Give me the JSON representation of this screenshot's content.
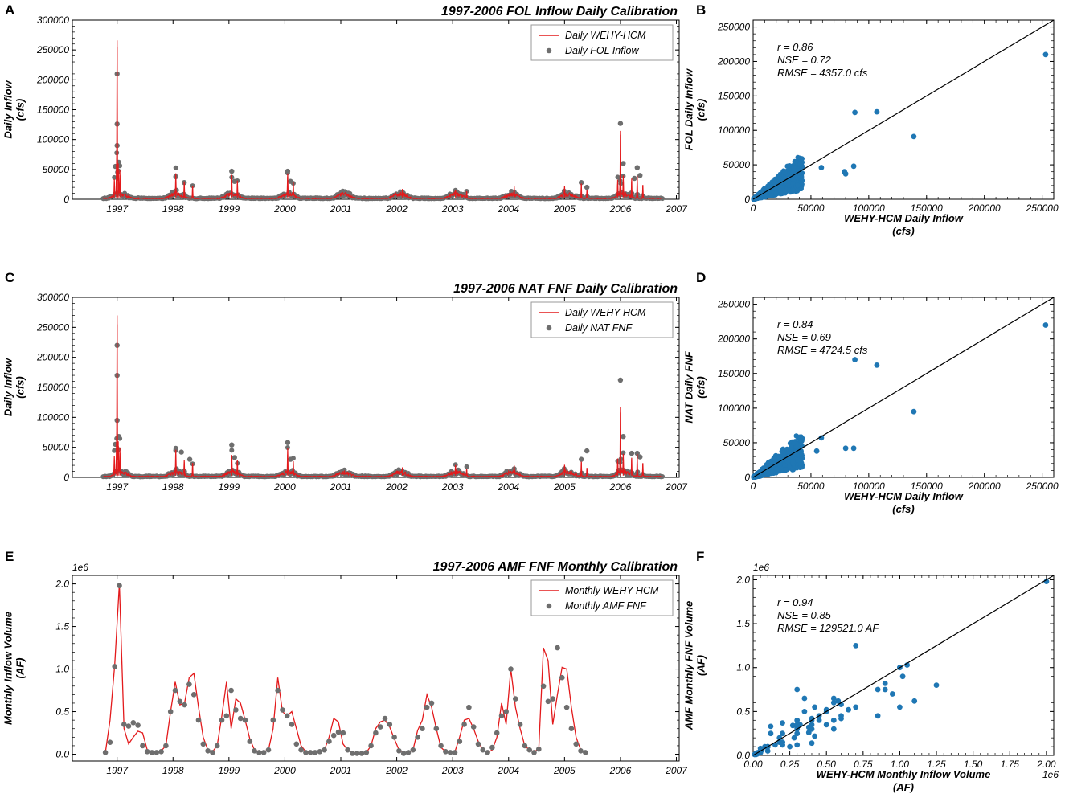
{
  "chart_data": [
    {
      "panel": "A",
      "type": "line",
      "title": "1997-2006 FOL Inflow Daily Calibration",
      "xlabel": "",
      "ylabel": "Daily Inflow\n(cfs)",
      "ylim": [
        0,
        300000
      ],
      "x_ticks": [
        "1997",
        "1998",
        "1999",
        "2000",
        "2001",
        "2002",
        "2003",
        "2004",
        "2005",
        "2006",
        "2007"
      ],
      "y_ticks": [
        "0",
        "50000",
        "100000",
        "150000",
        "200000",
        "250000",
        "300000"
      ],
      "legend": {
        "position": "top-right",
        "line_label": "Daily WEHY-HCM",
        "point_label": "Daily FOL Inflow"
      },
      "colors": {
        "line": "#e31a1c",
        "points": "#6e6e6e"
      },
      "peaks": [
        [
          1996.95,
          30000
        ],
        [
          1996.99,
          58000
        ],
        [
          1997.0,
          255000
        ],
        [
          1997.02,
          60000
        ],
        [
          1997.05,
          40000
        ],
        [
          1998.05,
          38000
        ],
        [
          1998.2,
          25000
        ],
        [
          1998.35,
          22000
        ],
        [
          1999.05,
          32000
        ],
        [
          1999.15,
          25000
        ],
        [
          2000.05,
          38000
        ],
        [
          2000.15,
          22000
        ],
        [
          2002.1,
          8000
        ],
        [
          2003.05,
          10000
        ],
        [
          2003.25,
          12000
        ],
        [
          2004.1,
          12000
        ],
        [
          2005.0,
          12000
        ],
        [
          2005.3,
          25000
        ],
        [
          2005.4,
          15000
        ],
        [
          2005.95,
          25000
        ],
        [
          2006.0,
          108000
        ],
        [
          2006.05,
          30000
        ],
        [
          2006.2,
          30000
        ],
        [
          2006.3,
          38000
        ],
        [
          2006.4,
          22000
        ]
      ],
      "obs_peaks": [
        [
          1996.97,
          55000
        ],
        [
          1997.0,
          210000
        ],
        [
          1997.0,
          126000
        ],
        [
          1997.0,
          90000
        ],
        [
          1997.03,
          62000
        ],
        [
          1998.05,
          38000
        ],
        [
          1998.2,
          28000
        ],
        [
          1999.05,
          47000
        ],
        [
          1999.1,
          30000
        ],
        [
          2000.05,
          47000
        ],
        [
          2000.1,
          30000
        ],
        [
          2002.1,
          8000
        ],
        [
          2003.1,
          10000
        ],
        [
          2004.1,
          12000
        ],
        [
          2005.3,
          28000
        ],
        [
          2005.4,
          20000
        ],
        [
          2006.0,
          127000
        ],
        [
          2006.05,
          60000
        ],
        [
          2006.25,
          35000
        ],
        [
          2006.3,
          53000
        ],
        [
          2006.35,
          40000
        ]
      ]
    },
    {
      "panel": "B",
      "type": "scatter",
      "xlabel": "WEHY-HCM Daily Inflow\n(cfs)",
      "ylabel": "FOL Daily Inflow\n(cfs)",
      "xlim": [
        0,
        260000
      ],
      "ylim": [
        0,
        260000
      ],
      "x_ticks": [
        "0",
        "50000",
        "100000",
        "150000",
        "200000",
        "250000"
      ],
      "y_ticks": [
        "0",
        "50000",
        "100000",
        "150000",
        "200000",
        "250000"
      ],
      "stats": [
        "r = 0.86",
        "NSE = 0.72",
        "RMSE = 4357.0 cfs"
      ],
      "colors": {
        "points": "#1f77b4",
        "line": "#000000"
      },
      "outliers": [
        [
          253000,
          210000
        ],
        [
          139000,
          91000
        ],
        [
          107000,
          127000
        ],
        [
          88000,
          126000
        ],
        [
          80000,
          37000
        ],
        [
          79000,
          40000
        ],
        [
          87000,
          48000
        ],
        [
          59000,
          46000
        ]
      ]
    },
    {
      "panel": "C",
      "type": "line",
      "title": "1997-2006 NAT FNF Daily Calibration",
      "xlabel": "",
      "ylabel": "Daily Inflow\n(cfs)",
      "ylim": [
        0,
        300000
      ],
      "x_ticks": [
        "1997",
        "1998",
        "1999",
        "2000",
        "2001",
        "2002",
        "2003",
        "2004",
        "2005",
        "2006",
        "2007"
      ],
      "y_ticks": [
        "0",
        "50000",
        "100000",
        "150000",
        "200000",
        "250000",
        "300000"
      ],
      "legend": {
        "position": "top-right",
        "line_label": "Daily WEHY-HCM",
        "point_label": "Daily NAT FNF"
      },
      "colors": {
        "line": "#e31a1c",
        "points": "#6e6e6e"
      },
      "peaks": [
        [
          1996.95,
          30000
        ],
        [
          1996.99,
          58000
        ],
        [
          1997.0,
          255000
        ],
        [
          1997.02,
          60000
        ],
        [
          1997.05,
          40000
        ],
        [
          1998.05,
          38000
        ],
        [
          1998.2,
          25000
        ],
        [
          1998.35,
          22000
        ],
        [
          1999.05,
          32000
        ],
        [
          1999.15,
          25000
        ],
        [
          2000.05,
          38000
        ],
        [
          2000.15,
          22000
        ],
        [
          2002.1,
          8000
        ],
        [
          2003.05,
          10000
        ],
        [
          2003.25,
          12000
        ],
        [
          2004.1,
          12000
        ],
        [
          2005.0,
          12000
        ],
        [
          2005.3,
          25000
        ],
        [
          2005.4,
          15000
        ],
        [
          2005.95,
          25000
        ],
        [
          2006.0,
          108000
        ],
        [
          2006.05,
          30000
        ],
        [
          2006.2,
          30000
        ],
        [
          2006.3,
          38000
        ],
        [
          2006.4,
          22000
        ]
      ],
      "obs_peaks": [
        [
          1996.97,
          55000
        ],
        [
          1997.0,
          220000
        ],
        [
          1997.0,
          170000
        ],
        [
          1997.0,
          95000
        ],
        [
          1997.03,
          68000
        ],
        [
          1998.05,
          45000
        ],
        [
          1998.15,
          42000
        ],
        [
          1998.3,
          30000
        ],
        [
          1999.05,
          54000
        ],
        [
          1999.1,
          33000
        ],
        [
          2000.05,
          58000
        ],
        [
          2000.1,
          30000
        ],
        [
          2002.1,
          10000
        ],
        [
          2003.1,
          12000
        ],
        [
          2004.1,
          14000
        ],
        [
          2005.3,
          30000
        ],
        [
          2005.4,
          44000
        ],
        [
          2006.0,
          162000
        ],
        [
          2006.05,
          68000
        ],
        [
          2006.2,
          40000
        ],
        [
          2006.3,
          40000
        ],
        [
          2006.35,
          34000
        ]
      ]
    },
    {
      "panel": "D",
      "type": "scatter",
      "xlabel": "WEHY-HCM Daily Inflow\n(cfs)",
      "ylabel": "NAT Daily FNF\n(cfs)",
      "xlim": [
        0,
        260000
      ],
      "ylim": [
        0,
        260000
      ],
      "x_ticks": [
        "0",
        "50000",
        "100000",
        "150000",
        "200000",
        "250000"
      ],
      "y_ticks": [
        "0",
        "50000",
        "100000",
        "150000",
        "200000",
        "250000"
      ],
      "stats": [
        "r = 0.84",
        "NSE = 0.69",
        "RMSE = 4724.5 cfs"
      ],
      "colors": {
        "points": "#1f77b4",
        "line": "#000000"
      },
      "outliers": [
        [
          253000,
          220000
        ],
        [
          139000,
          95000
        ],
        [
          107000,
          162000
        ],
        [
          88000,
          170000
        ],
        [
          80000,
          42000
        ],
        [
          87000,
          42000
        ],
        [
          59000,
          57000
        ],
        [
          55000,
          38000
        ]
      ]
    },
    {
      "panel": "E",
      "type": "line",
      "title": "1997-2006 AMF FNF Monthly Calibration",
      "xlabel": "",
      "ylabel": "Monthly Inflow Volume\n(AF)",
      "ylim": [
        -0.08,
        2.1
      ],
      "y_scale": "1e6",
      "x_ticks": [
        "1997",
        "1998",
        "1999",
        "2000",
        "2001",
        "2002",
        "2003",
        "2004",
        "2005",
        "2006",
        "2007"
      ],
      "y_ticks": [
        "0.0",
        "0.5",
        "1.0",
        "1.5",
        "2.0"
      ],
      "legend": {
        "position": "top-right",
        "line_label": "Monthly WEHY-HCM",
        "point_label": "Monthly AMF FNF"
      },
      "colors": {
        "line": "#e31a1c",
        "points": "#6e6e6e"
      },
      "start": 1996.79,
      "model": [
        0.02,
        0.4,
        1.05,
        2.0,
        0.3,
        0.12,
        0.2,
        0.27,
        0.25,
        0.05,
        0.02,
        0.02,
        0.04,
        0.1,
        0.5,
        0.85,
        0.58,
        0.6,
        0.9,
        0.95,
        0.55,
        0.2,
        0.05,
        0.03,
        0.1,
        0.45,
        0.85,
        0.3,
        0.65,
        0.6,
        0.4,
        0.18,
        0.05,
        0.03,
        0.03,
        0.05,
        0.3,
        0.9,
        0.5,
        0.45,
        0.5,
        0.3,
        0.1,
        0.03,
        0.02,
        0.02,
        0.03,
        0.05,
        0.2,
        0.42,
        0.38,
        0.12,
        0.05,
        0.02,
        0.01,
        0.01,
        0.02,
        0.1,
        0.3,
        0.38,
        0.4,
        0.32,
        0.18,
        0.05,
        0.02,
        0.02,
        0.05,
        0.28,
        0.4,
        0.7,
        0.55,
        0.3,
        0.08,
        0.03,
        0.03,
        0.03,
        0.2,
        0.4,
        0.42,
        0.3,
        0.15,
        0.05,
        0.02,
        0.05,
        0.2,
        0.6,
        0.35,
        1.0,
        0.55,
        0.3,
        0.1,
        0.05,
        0.03,
        0.06,
        1.25,
        1.1,
        0.35,
        0.7,
        1.02,
        1.0,
        0.55,
        0.2,
        0.05,
        0.02
      ],
      "observed": [
        0.02,
        0.14,
        1.03,
        1.98,
        0.35,
        0.33,
        0.37,
        0.34,
        0.1,
        0.03,
        0.02,
        0.02,
        0.03,
        0.1,
        0.5,
        0.75,
        0.62,
        0.58,
        0.82,
        0.7,
        0.4,
        0.12,
        0.04,
        0.02,
        0.1,
        0.4,
        0.45,
        0.75,
        0.52,
        0.42,
        0.4,
        0.15,
        0.04,
        0.02,
        0.02,
        0.05,
        0.4,
        0.75,
        0.52,
        0.45,
        0.35,
        0.12,
        0.05,
        0.02,
        0.02,
        0.02,
        0.03,
        0.05,
        0.15,
        0.22,
        0.26,
        0.25,
        0.05,
        0.01,
        0.01,
        0.01,
        0.02,
        0.1,
        0.25,
        0.32,
        0.42,
        0.35,
        0.2,
        0.04,
        0.01,
        0.02,
        0.05,
        0.2,
        0.3,
        0.55,
        0.6,
        0.3,
        0.1,
        0.03,
        0.02,
        0.02,
        0.15,
        0.35,
        0.55,
        0.32,
        0.12,
        0.05,
        0.02,
        0.08,
        0.25,
        0.45,
        0.5,
        1.0,
        0.65,
        0.35,
        0.1,
        0.05,
        0.02,
        0.06,
        0.8,
        0.62,
        0.65,
        1.25,
        0.9,
        0.55,
        0.3,
        0.12,
        0.04,
        0.02
      ]
    },
    {
      "panel": "F",
      "type": "scatter",
      "xlabel": "WEHY-HCM Monthly Inflow Volume\n(AF)",
      "ylabel": "AMF Monthly FNF Volume\n(AF)",
      "xlim": [
        0,
        2.05
      ],
      "ylim": [
        0,
        2.05
      ],
      "scale_label": "1e6",
      "x_ticks": [
        "0.00",
        "0.25",
        "0.50",
        "0.75",
        "1.00",
        "1.25",
        "1.50",
        "1.75",
        "2.00"
      ],
      "y_ticks": [
        "0.0",
        "0.5",
        "1.0",
        "1.5",
        "2.0"
      ],
      "stats": [
        "r = 0.94",
        "NSE = 0.85",
        "RMSE = 129521.0 AF"
      ],
      "colors": {
        "points": "#1f77b4",
        "line": "#000000"
      }
    }
  ],
  "panel_labels": [
    "A",
    "B",
    "C",
    "D",
    "E",
    "F"
  ]
}
